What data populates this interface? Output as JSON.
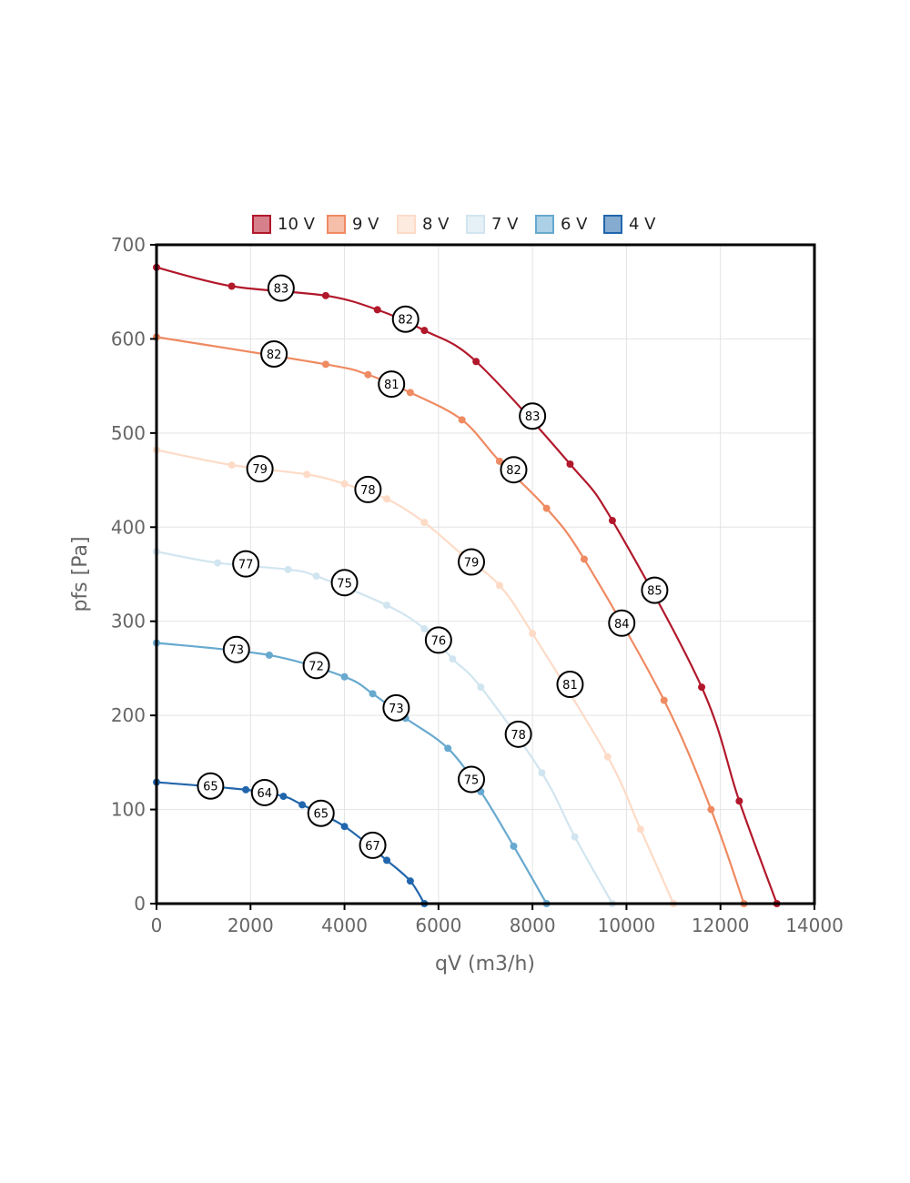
{
  "chart_data": {
    "type": "line",
    "title": "",
    "xlabel": "qV (m3/h)",
    "ylabel": "pfs [Pa]",
    "xlim": [
      0,
      14000
    ],
    "ylim": [
      0,
      700
    ],
    "xticks": [
      "0",
      "2000",
      "4000",
      "6000",
      "8000",
      "10000",
      "12000",
      "14000"
    ],
    "yticks": [
      "0",
      "100",
      "200",
      "300",
      "400",
      "500",
      "600",
      "700"
    ],
    "grid": true,
    "legend_position": "top",
    "series": [
      {
        "name": "10 V",
        "color": "#b2182b",
        "points": [
          [
            0,
            676
          ],
          [
            1600,
            656
          ],
          [
            3600,
            646
          ],
          [
            4700,
            631
          ],
          [
            5700,
            609
          ],
          [
            6800,
            576
          ],
          [
            8800,
            467
          ],
          [
            9700,
            407
          ],
          [
            11600,
            230
          ],
          [
            12400,
            109
          ],
          [
            13200,
            0
          ]
        ],
        "labels": [
          {
            "x": 2650,
            "y": 654,
            "text": "83"
          },
          {
            "x": 5300,
            "y": 621,
            "text": "82"
          },
          {
            "x": 8000,
            "y": 518,
            "text": "83"
          },
          {
            "x": 10600,
            "y": 333,
            "text": "85"
          }
        ]
      },
      {
        "name": "9 V",
        "color": "#ef8a62",
        "points": [
          [
            0,
            602
          ],
          [
            3600,
            573
          ],
          [
            4500,
            562
          ],
          [
            5400,
            543
          ],
          [
            6500,
            514
          ],
          [
            7300,
            470
          ],
          [
            8300,
            420
          ],
          [
            9100,
            366
          ],
          [
            10800,
            216
          ],
          [
            11800,
            100
          ],
          [
            12500,
            0
          ]
        ],
        "labels": [
          {
            "x": 2500,
            "y": 584,
            "text": "82"
          },
          {
            "x": 5000,
            "y": 552,
            "text": "81"
          },
          {
            "x": 7600,
            "y": 461,
            "text": "82"
          },
          {
            "x": 9900,
            "y": 298,
            "text": "84"
          }
        ]
      },
      {
        "name": "8 V",
        "color": "#fddbc7",
        "points": [
          [
            0,
            482
          ],
          [
            1600,
            466
          ],
          [
            3200,
            456
          ],
          [
            4000,
            446
          ],
          [
            4900,
            430
          ],
          [
            5700,
            405
          ],
          [
            6500,
            371
          ],
          [
            7300,
            338
          ],
          [
            8000,
            287
          ],
          [
            9600,
            156
          ],
          [
            10300,
            79
          ],
          [
            11000,
            0
          ]
        ],
        "labels": [
          {
            "x": 2200,
            "y": 462,
            "text": "79"
          },
          {
            "x": 4500,
            "y": 440,
            "text": "78"
          },
          {
            "x": 6700,
            "y": 363,
            "text": "79"
          },
          {
            "x": 8800,
            "y": 233,
            "text": "81"
          }
        ]
      },
      {
        "name": "7 V",
        "color": "#d1e5f0",
        "points": [
          [
            0,
            374
          ],
          [
            1300,
            362
          ],
          [
            2800,
            355
          ],
          [
            3400,
            348
          ],
          [
            4900,
            317
          ],
          [
            5700,
            292
          ],
          [
            6300,
            260
          ],
          [
            6900,
            230
          ],
          [
            8200,
            139
          ],
          [
            8900,
            71
          ],
          [
            9700,
            0
          ]
        ],
        "labels": [
          {
            "x": 1900,
            "y": 361,
            "text": "77"
          },
          {
            "x": 4000,
            "y": 341,
            "text": "75"
          },
          {
            "x": 6000,
            "y": 280,
            "text": "76"
          },
          {
            "x": 7700,
            "y": 180,
            "text": "78"
          }
        ]
      },
      {
        "name": "6 V",
        "color": "#67a9cf",
        "points": [
          [
            0,
            277
          ],
          [
            2400,
            264
          ],
          [
            4000,
            241
          ],
          [
            4600,
            223
          ],
          [
            5300,
            197
          ],
          [
            6200,
            165
          ],
          [
            6900,
            119
          ],
          [
            7600,
            61
          ],
          [
            8300,
            0
          ]
        ],
        "labels": [
          {
            "x": 1700,
            "y": 270,
            "text": "73"
          },
          {
            "x": 3400,
            "y": 253,
            "text": "72"
          },
          {
            "x": 5100,
            "y": 208,
            "text": "73"
          },
          {
            "x": 6700,
            "y": 132,
            "text": "75"
          }
        ]
      },
      {
        "name": "4 V",
        "color": "#2166ac",
        "points": [
          [
            0,
            129
          ],
          [
            1900,
            121
          ],
          [
            2700,
            114
          ],
          [
            3100,
            105
          ],
          [
            4000,
            82
          ],
          [
            4900,
            46
          ],
          [
            5400,
            24
          ],
          [
            5700,
            0
          ]
        ],
        "labels": [
          {
            "x": 1150,
            "y": 125,
            "text": "65"
          },
          {
            "x": 2300,
            "y": 118,
            "text": "64"
          },
          {
            "x": 3500,
            "y": 96,
            "text": "65"
          },
          {
            "x": 4600,
            "y": 62,
            "text": "67"
          }
        ]
      }
    ]
  }
}
